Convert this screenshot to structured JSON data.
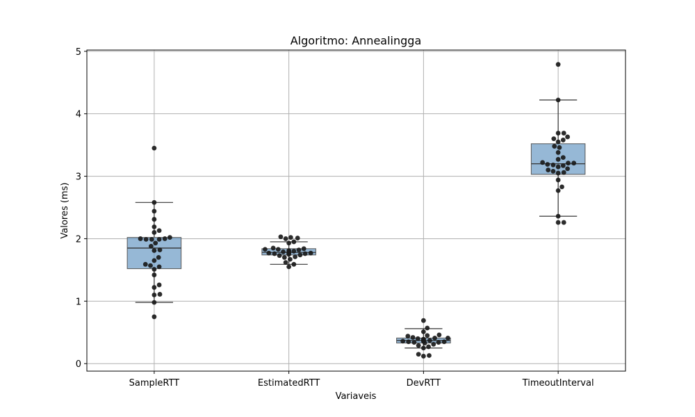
{
  "chart_data": {
    "type": "box",
    "title": "Algoritmo: Annealingga",
    "xlabel": "Variaveis",
    "ylabel": "Valores (ms)",
    "ylim": [
      -0.12,
      5.02
    ],
    "yticks": [
      0,
      1,
      2,
      3,
      4,
      5
    ],
    "grid": true,
    "box_color": "#6a9ac4",
    "point_color": "#1a1a1a",
    "categories": [
      "SampleRTT",
      "EstimatedRTT",
      "DevRTT",
      "TimeoutInterval"
    ],
    "boxes": [
      {
        "name": "SampleRTT",
        "whisker_low": 0.98,
        "q1": 1.52,
        "median": 1.85,
        "q3": 2.02,
        "whisker_high": 2.58
      },
      {
        "name": "EstimatedRTT",
        "whisker_low": 1.59,
        "q1": 1.74,
        "median": 1.78,
        "q3": 1.84,
        "whisker_high": 1.95
      },
      {
        "name": "DevRTT",
        "whisker_low": 0.25,
        "q1": 0.33,
        "median": 0.37,
        "q3": 0.41,
        "whisker_high": 0.56
      },
      {
        "name": "TimeoutInterval",
        "whisker_low": 2.36,
        "q1": 3.03,
        "median": 3.2,
        "q3": 3.52,
        "whisker_high": 4.22
      }
    ],
    "points": [
      [
        3.45,
        2.58,
        2.44,
        2.31,
        2.19,
        2.13,
        2.1,
        2.02,
        2.0,
        2.0,
        1.99,
        1.99,
        1.99,
        1.93,
        1.88,
        1.82,
        1.81,
        1.7,
        1.65,
        1.59,
        1.57,
        1.55,
        1.51,
        1.42,
        1.26,
        1.22,
        1.11,
        1.1,
        0.98,
        0.75
      ],
      [
        2.03,
        2.02,
        2.01,
        2.0,
        1.95,
        1.93,
        1.85,
        1.84,
        1.83,
        1.83,
        1.82,
        1.81,
        1.8,
        1.8,
        1.79,
        1.78,
        1.78,
        1.77,
        1.77,
        1.77,
        1.76,
        1.76,
        1.75,
        1.74,
        1.73,
        1.71,
        1.7,
        1.67,
        1.62,
        1.59,
        1.55
      ],
      [
        0.69,
        0.57,
        0.51,
        0.46,
        0.45,
        0.44,
        0.42,
        0.41,
        0.41,
        0.4,
        0.39,
        0.39,
        0.38,
        0.37,
        0.37,
        0.37,
        0.36,
        0.36,
        0.36,
        0.35,
        0.35,
        0.34,
        0.34,
        0.33,
        0.31,
        0.29,
        0.27,
        0.25,
        0.15,
        0.13,
        0.12
      ],
      [
        4.79,
        4.22,
        3.69,
        3.69,
        3.63,
        3.6,
        3.58,
        3.55,
        3.48,
        3.46,
        3.38,
        3.3,
        3.27,
        3.22,
        3.21,
        3.21,
        3.19,
        3.18,
        3.17,
        3.15,
        3.12,
        3.1,
        3.08,
        3.06,
        3.05,
        2.94,
        2.83,
        2.77,
        2.36,
        2.26,
        2.26
      ]
    ]
  }
}
